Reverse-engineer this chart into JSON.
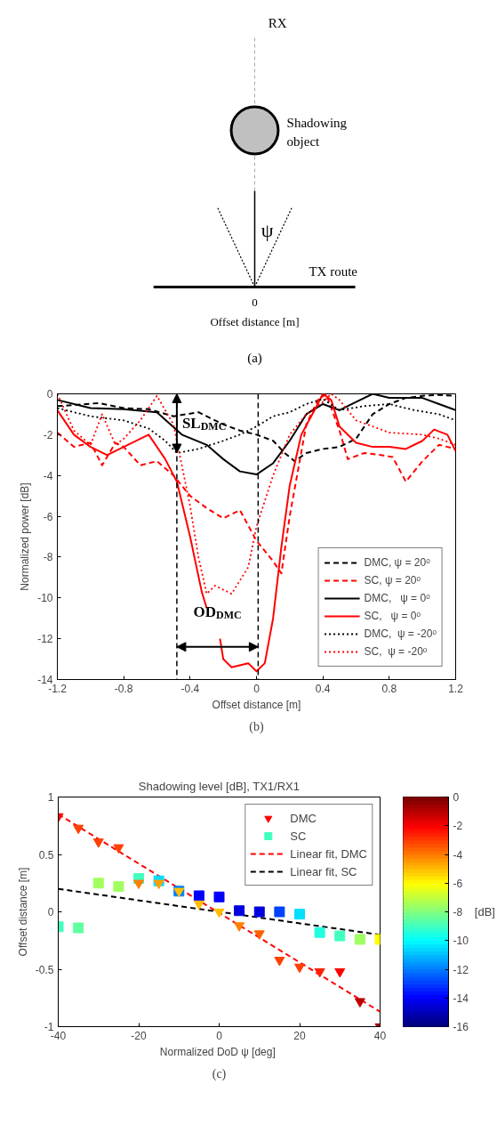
{
  "chart_data": [
    {
      "type": "other",
      "annotations": [
        "RX",
        "Shadowing object",
        "ψ",
        "TX route",
        "0",
        "Offset distance [m]",
        "(a)"
      ]
    },
    {
      "type": "line",
      "xlabel": "Offset distance [m]",
      "ylabel": "Normalized power [dB]",
      "xlim": [
        -1.2,
        1.2
      ],
      "xticks": [
        -1.2,
        -0.8,
        -0.4,
        0,
        0.4,
        0.8,
        1.2
      ],
      "ylim": [
        -14,
        0
      ],
      "yticks": [
        -14,
        -12,
        -10,
        -8,
        -6,
        -4,
        -2,
        0
      ],
      "legend": "bottom right",
      "series": [
        {
          "name": "DMC, ψ = 20ᵒ",
          "color": "#000000",
          "line_style": "dashed",
          "x": [
            -1.2,
            -1.1,
            -0.95,
            -0.8,
            -0.65,
            -0.5,
            -0.35,
            -0.2,
            -0.1,
            0.0,
            0.1,
            0.17,
            0.23,
            0.3,
            0.4,
            0.5,
            0.6,
            0.7,
            0.8,
            0.9,
            1.0,
            1.1,
            1.2
          ],
          "values": [
            -0.6,
            -0.55,
            -0.45,
            -0.7,
            -0.75,
            -1.1,
            -0.9,
            -1.5,
            -1.8,
            -2.0,
            -2.3,
            -2.9,
            -3.3,
            -2.9,
            -2.7,
            -2.6,
            -2.2,
            -1.0,
            -0.5,
            -0.2,
            -0.1,
            -0.05,
            -0.1
          ]
        },
        {
          "name": "SC, ψ = 20ᵒ",
          "color": "#ff0000",
          "line_style": "dashed",
          "x": [
            -1.2,
            -1.1,
            -1.0,
            -0.93,
            -0.85,
            -0.8,
            -0.7,
            -0.6,
            -0.5,
            -0.4,
            -0.3,
            -0.2,
            -0.1,
            0.0,
            0.1,
            0.15,
            0.2,
            0.3,
            0.37,
            0.42,
            0.5,
            0.55,
            0.65,
            0.75,
            0.82,
            0.9,
            1.0,
            1.1,
            1.2
          ],
          "values": [
            -1.9,
            -2.6,
            -2.4,
            -3.5,
            -2.4,
            -2.6,
            -3.5,
            -3.3,
            -4.0,
            -5.0,
            -5.6,
            -6.1,
            -5.7,
            -7.2,
            -8.2,
            -8.8,
            -6.0,
            -1.5,
            -0.3,
            0.0,
            -1.8,
            -3.2,
            -2.9,
            -3.0,
            -3.1,
            -4.3,
            -3.3,
            -2.5,
            -2.7
          ]
        },
        {
          "name": "DMC,   ψ = 0ᵒ",
          "color": "#000000",
          "line_style": "solid",
          "x": [
            -1.2,
            -1.0,
            -0.8,
            -0.6,
            -0.45,
            -0.3,
            -0.2,
            -0.1,
            0.0,
            0.1,
            0.2,
            0.3,
            0.4,
            0.5,
            0.6,
            0.7,
            0.8,
            0.9,
            1.0,
            1.1,
            1.2
          ],
          "values": [
            -0.3,
            -0.7,
            -0.75,
            -0.9,
            -2.0,
            -2.5,
            -3.2,
            -3.8,
            -3.95,
            -3.4,
            -2.3,
            -1.0,
            -0.5,
            -0.8,
            -0.4,
            0.0,
            -0.2,
            -0.2,
            -0.2,
            -0.5,
            -0.8
          ]
        },
        {
          "name": "SC,   ψ = 0ᵒ",
          "color": "#ff0000",
          "line_style": "solid",
          "x": [
            -1.2,
            -1.1,
            -1.0,
            -0.9,
            -0.8,
            -0.65,
            -0.55,
            -0.48,
            -0.4,
            -0.33,
            -0.3,
            -0.26,
            -0.22,
            -0.2,
            -0.15,
            -0.1,
            -0.05,
            0.0,
            0.05,
            0.1,
            0.15,
            0.2,
            0.27,
            0.35,
            0.4,
            0.45,
            0.5,
            0.6,
            0.7,
            0.8,
            0.9,
            1.0,
            1.07,
            1.15,
            1.2
          ],
          "values": [
            -0.8,
            -2.0,
            -2.6,
            -3.0,
            -2.6,
            -2.0,
            -3.2,
            -4.3,
            -7.0,
            -9.7,
            -10.5,
            null,
            -12.0,
            -13.0,
            -13.4,
            -13.3,
            -13.2,
            -13.6,
            -13.2,
            -11.0,
            -7.5,
            -4.5,
            -2.0,
            -0.8,
            0.0,
            -0.3,
            -1.6,
            -2.4,
            -2.6,
            -2.6,
            -2.7,
            -2.3,
            -1.75,
            -2.0,
            -2.8
          ]
        },
        {
          "name": "DMC,  ψ = -20ᵒ",
          "color": "#000000",
          "line_style": "dotted",
          "x": [
            -1.2,
            -1.0,
            -0.8,
            -0.65,
            -0.55,
            -0.48,
            -0.35,
            -0.2,
            -0.1,
            0.0,
            0.1,
            0.2,
            0.3,
            0.4,
            0.5,
            0.65,
            0.8,
            0.95,
            1.1,
            1.2
          ],
          "values": [
            -0.7,
            -1.1,
            -1.3,
            -1.7,
            -2.3,
            -2.9,
            -2.7,
            -2.3,
            -2.0,
            -1.6,
            -1.1,
            -0.9,
            -0.5,
            -0.25,
            -0.8,
            -0.6,
            -0.5,
            -0.8,
            -1.0,
            -1.3
          ]
        },
        {
          "name": "SC,  ψ = -20ᵒ",
          "color": "#ff0000",
          "line_style": "dotted",
          "x": [
            -1.2,
            -1.1,
            -1.0,
            -0.93,
            -0.85,
            -0.8,
            -0.7,
            -0.6,
            -0.5,
            -0.45,
            -0.4,
            -0.35,
            -0.3,
            -0.25,
            -0.15,
            -0.05,
            0.0,
            0.1,
            0.2,
            0.3,
            0.4,
            0.45,
            0.5,
            0.6,
            0.8,
            1.0,
            1.1,
            1.2
          ],
          "values": [
            0.0,
            -1.8,
            -2.5,
            -1.0,
            -2.5,
            -2.2,
            -1.3,
            -0.1,
            -1.5,
            -3.5,
            -5.5,
            -8.0,
            -9.8,
            -9.4,
            -9.8,
            -8.5,
            -6.5,
            -4.0,
            -2.0,
            -1.0,
            -0.4,
            0.0,
            -0.3,
            -1.3,
            -1.9,
            -2.0,
            -2.2,
            -2.5
          ]
        }
      ],
      "ref_lines": [
        {
          "axis": "x",
          "value": -0.48,
          "color": "#000000",
          "line_style": "dashed"
        },
        {
          "axis": "x",
          "value": 0.01,
          "color": "#000000",
          "line_style": "dashed"
        }
      ],
      "annotations": [
        {
          "text": "SL$_{DMC}$",
          "x": -0.48,
          "y": -2.9
        },
        {
          "text": "OD$_{DMC}$",
          "x": -0.235,
          "y": -12.4
        },
        "(b)"
      ]
    },
    {
      "type": "scatter",
      "title": "Shadowing level [dB], TX1/RX1",
      "xlabel": "Normalized DoD ψ  [deg]",
      "ylabel": "Offset distance [m]",
      "xlim": [
        -40,
        40
      ],
      "xticks": [
        -40,
        -20,
        0,
        20,
        40
      ],
      "ylim": [
        -1,
        1
      ],
      "yticks": [
        -1,
        -0.5,
        0,
        0.5,
        1
      ],
      "legend": "top right",
      "clabel": "[dB]",
      "clim": [
        -16,
        0
      ],
      "cticks": [
        0,
        -2,
        -4,
        -6,
        -8,
        -10,
        -12,
        -14,
        -16
      ],
      "x": [
        -40,
        -35,
        -30,
        -25,
        -20,
        -15,
        -10,
        -5,
        0,
        5,
        10,
        15,
        20,
        25,
        30,
        35,
        40
      ],
      "series": [
        {
          "name": "DMC",
          "marker": "triangle",
          "values": [
            0.83,
            0.73,
            0.61,
            0.56,
            0.25,
            0.25,
            0.18,
            0.07,
            0.0,
            -0.12,
            -0.19,
            -0.42,
            -0.48,
            -0.52,
            -0.52,
            -0.78,
            -1.0
          ],
          "cvalues": [
            -2,
            -3,
            -3,
            -3,
            -4,
            -4.5,
            -5,
            -5,
            -5,
            -4,
            -3.5,
            -3,
            -3,
            -2.5,
            -2,
            -1,
            -0.5
          ],
          "colors": [
            "#ff0000",
            "#ff4000",
            "#ff4000",
            "#ff4000",
            "#ff8000",
            "#ff9f00",
            "#ffbf00",
            "#ffbf00",
            "#ffbf00",
            "#ff8000",
            "#ff6000",
            "#ff4000",
            "#ff4000",
            "#ff2000",
            "#ff0000",
            "#bf0000",
            "#9f0000"
          ]
        },
        {
          "name": "SC",
          "marker": "square",
          "values": [
            -0.13,
            -0.14,
            0.25,
            0.22,
            0.29,
            0.27,
            0.18,
            0.14,
            0.13,
            0.01,
            0.0,
            0.0,
            -0.02,
            -0.18,
            -0.21,
            -0.24,
            -0.24
          ],
          "cvalues": [
            -9,
            -8.5,
            -7.5,
            -7.5,
            -9,
            -10.5,
            -12,
            -14,
            -14,
            -14.5,
            -14.5,
            -13,
            -10.5,
            -9.5,
            -9,
            -7.5,
            -6
          ],
          "colors": [
            "#40ffbf",
            "#60ff9f",
            "#9fff60",
            "#9fff60",
            "#40ffbf",
            "#00dfff",
            "#0080ff",
            "#0000ff",
            "#0000ff",
            "#0000df",
            "#0000df",
            "#0040ff",
            "#00dfff",
            "#20ffdf",
            "#40ffbf",
            "#9fff60",
            "#ffff00"
          ]
        },
        {
          "name": "Linear fit, DMC",
          "type": "line",
          "line_style": "dashed",
          "color": "#ff0000",
          "x": [
            -40,
            40
          ],
          "values": [
            0.85,
            -0.87
          ]
        },
        {
          "name": "Linear fit, SC",
          "type": "line",
          "line_style": "dashed",
          "color": "#000000",
          "x": [
            -40,
            40
          ],
          "values": [
            0.2,
            -0.2
          ]
        }
      ],
      "annotations": [
        "(c)"
      ]
    }
  ]
}
